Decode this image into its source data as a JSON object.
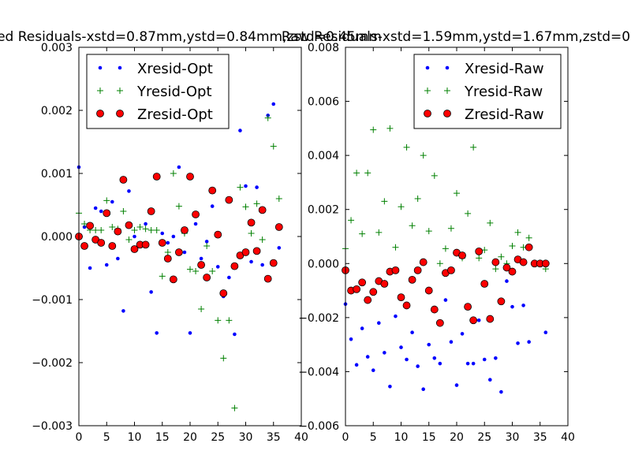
{
  "figure_titles": [
    "ed Residuals-xstd=0.87mm,ystd=0.84mm,zstd=0.45mm",
    "Raw Residuals-xstd=1.59mm,ystd=1.67mm,zstd=0"
  ],
  "colors": {
    "xresid": "#0000ff",
    "yresid": "#008000",
    "zresid_face": "#ff0000",
    "zresid_edge": "#000000",
    "axes": "#000000",
    "background": "#ffffff"
  },
  "chart_data": [
    {
      "type": "scatter",
      "title": "ed Residuals-xstd=0.87mm,ystd=0.84mm,zstd=0.45mm",
      "xlim": [
        0,
        40
      ],
      "ylim": [
        -0.003,
        0.003
      ],
      "xticks": [
        0,
        5,
        10,
        15,
        20,
        25,
        30,
        35,
        40
      ],
      "xtick_labels": [
        "0",
        "5",
        "10",
        "15",
        "20",
        "25",
        "30",
        "35",
        "40"
      ],
      "yticks": [
        -0.003,
        -0.002,
        -0.001,
        0.0,
        0.001,
        0.002,
        0.003
      ],
      "ytick_labels": [
        "−0.003",
        "−0.002",
        "−0.001",
        "0.000",
        "0.001",
        "0.002",
        "0.003"
      ],
      "grid": false,
      "legend_position": "top-left",
      "series": [
        {
          "name": "Xresid-Opt",
          "marker": "dot",
          "color_key": "xresid",
          "x": [
            0,
            1,
            2,
            3,
            4,
            5,
            6,
            7,
            8,
            9,
            10,
            11,
            12,
            13,
            14,
            15,
            16,
            17,
            18,
            19,
            20,
            21,
            22,
            23,
            24,
            25,
            26,
            27,
            28,
            29,
            30,
            31,
            32,
            33,
            34,
            35,
            36
          ],
          "y": [
            0.0011,
            0.00015,
            -0.0005,
            0.00045,
            0.0004,
            -0.00045,
            0.00055,
            -0.00035,
            -0.00118,
            0.00072,
            0.0,
            -0.0001,
            0.0002,
            -0.00088,
            -0.00153,
            5e-05,
            -0.0001,
            0.0,
            0.0011,
            -0.00025,
            -0.00153,
            0.0002,
            -0.00035,
            -8e-05,
            0.00048,
            -0.00048,
            -0.00095,
            -0.00065,
            -0.00155,
            0.00168,
            0.0008,
            -0.0004,
            0.00078,
            -0.00045,
            0.00192,
            0.0021,
            -0.00018
          ]
        },
        {
          "name": "Yresid-Opt",
          "marker": "plus",
          "color_key": "yresid",
          "x": [
            0,
            1,
            2,
            3,
            4,
            5,
            6,
            7,
            8,
            9,
            10,
            11,
            12,
            13,
            14,
            15,
            16,
            17,
            18,
            19,
            20,
            21,
            22,
            23,
            24,
            25,
            26,
            27,
            28,
            29,
            30,
            31,
            32,
            33,
            34,
            35,
            36
          ],
          "y": [
            0.00037,
            0.0002,
            0.0001,
            0.0001,
            0.0001,
            0.00057,
            0.00015,
            0.00012,
            0.0004,
            -5e-05,
            0.0001,
            0.00015,
            0.00012,
            0.0001,
            0.0001,
            -0.00063,
            -0.00025,
            0.001,
            0.00048,
            5e-05,
            -0.00052,
            -0.00055,
            -0.00115,
            -0.00015,
            -0.00055,
            -0.00133,
            -0.00193,
            -0.00133,
            -0.00272,
            0.00078,
            0.00047,
            5e-05,
            0.00052,
            -5e-05,
            0.00188,
            0.00143,
            0.0006
          ]
        },
        {
          "name": "Zresid-Opt",
          "marker": "circle",
          "color_key": "zresid_face",
          "x": [
            0,
            1,
            2,
            3,
            4,
            5,
            6,
            7,
            8,
            9,
            10,
            11,
            12,
            13,
            14,
            15,
            16,
            17,
            18,
            19,
            20,
            21,
            22,
            23,
            24,
            25,
            26,
            27,
            28,
            29,
            30,
            31,
            32,
            33,
            34,
            35,
            36
          ],
          "y": [
            0.0,
            -0.00015,
            0.00017,
            -5e-05,
            -0.0001,
            0.00037,
            -0.00015,
            8e-05,
            0.0009,
            0.00018,
            -0.0002,
            -0.00013,
            -0.00013,
            0.0004,
            0.00095,
            -0.0001,
            -0.00035,
            -0.00068,
            -0.00025,
            0.0001,
            0.00095,
            0.00035,
            -0.00045,
            -0.00065,
            0.00073,
            3e-05,
            -0.0009,
            0.00058,
            -0.00047,
            -0.0003,
            -0.00025,
            0.00022,
            -0.00023,
            0.00042,
            -0.00067,
            -0.00042,
            0.00015
          ]
        }
      ]
    },
    {
      "type": "scatter",
      "title": "Raw Residuals-xstd=1.59mm,ystd=1.67mm,zstd=0",
      "xlim": [
        0,
        40
      ],
      "ylim": [
        -0.006,
        0.008
      ],
      "xticks": [
        0,
        5,
        10,
        15,
        20,
        25,
        30,
        35,
        40
      ],
      "xtick_labels": [
        "0",
        "5",
        "10",
        "15",
        "20",
        "25",
        "30",
        "35",
        "40"
      ],
      "yticks": [
        -0.006,
        -0.004,
        -0.002,
        0.0,
        0.002,
        0.004,
        0.006,
        0.008
      ],
      "ytick_labels": [
        "−0.006",
        "−0.004",
        "−0.002",
        "0.000",
        "0.002",
        "0.004",
        "0.006",
        "0.008"
      ],
      "grid": false,
      "legend_position": "top-right",
      "series": [
        {
          "name": "Xresid-Raw",
          "marker": "dot",
          "color_key": "xresid",
          "x": [
            0,
            1,
            2,
            3,
            4,
            5,
            6,
            7,
            8,
            9,
            10,
            11,
            12,
            13,
            14,
            15,
            16,
            17,
            18,
            19,
            20,
            21,
            22,
            23,
            24,
            25,
            26,
            27,
            28,
            29,
            30,
            31,
            32,
            33,
            34,
            35,
            36
          ],
          "y": [
            -0.0015,
            -0.0028,
            -0.00375,
            -0.0024,
            -0.00345,
            -0.00395,
            -0.0022,
            -0.0033,
            -0.00455,
            -0.00195,
            -0.0031,
            -0.00355,
            -0.00255,
            -0.0038,
            -0.00465,
            -0.003,
            -0.0035,
            -0.0037,
            -0.00135,
            -0.0029,
            -0.0045,
            -0.0026,
            -0.0037,
            -0.0037,
            -0.0021,
            -0.00355,
            -0.0043,
            -0.0035,
            -0.00475,
            -0.00065,
            -0.0016,
            -0.00295,
            -0.00155,
            -0.0029,
            0.0,
            0.0,
            -0.00255
          ]
        },
        {
          "name": "Yresid-Raw",
          "marker": "plus",
          "color_key": "yresid",
          "x": [
            0,
            1,
            2,
            3,
            4,
            5,
            6,
            7,
            8,
            9,
            10,
            11,
            12,
            13,
            14,
            15,
            16,
            17,
            18,
            19,
            20,
            21,
            22,
            23,
            24,
            25,
            26,
            27,
            28,
            29,
            30,
            31,
            32,
            33,
            34,
            35,
            36
          ],
          "y": [
            0.00055,
            0.0016,
            0.00335,
            0.0011,
            0.00335,
            0.00495,
            0.00115,
            0.0023,
            0.005,
            0.0006,
            0.0021,
            0.0043,
            0.0014,
            0.0024,
            0.004,
            0.0012,
            0.00325,
            0.0,
            0.00055,
            0.0013,
            0.0026,
            0.0002,
            0.00185,
            0.0043,
            0.0002,
            0.0005,
            0.0015,
            -0.0002,
            0.00025,
            0.0,
            0.00065,
            0.00115,
            0.0006,
            0.00095,
            0.0,
            0.0,
            -0.0002
          ]
        },
        {
          "name": "Zresid-Raw",
          "marker": "circle",
          "color_key": "zresid_face",
          "x": [
            0,
            1,
            2,
            3,
            4,
            5,
            6,
            7,
            8,
            9,
            10,
            11,
            12,
            13,
            14,
            15,
            16,
            17,
            18,
            19,
            20,
            21,
            22,
            23,
            24,
            25,
            26,
            27,
            28,
            29,
            30,
            31,
            32,
            33,
            34,
            35,
            36
          ],
          "y": [
            -0.00025,
            -0.001,
            -0.00095,
            -0.0007,
            -0.00135,
            -0.00105,
            -0.00065,
            -0.00075,
            -0.0003,
            -0.00025,
            -0.00125,
            -0.00155,
            -0.0006,
            -0.00025,
            5e-05,
            -0.001,
            -0.0017,
            -0.0022,
            -0.00035,
            -0.00025,
            0.0004,
            0.0003,
            -0.0016,
            -0.0021,
            0.00045,
            -0.00075,
            -0.00205,
            5e-05,
            -0.0014,
            -0.00015,
            -0.0003,
            0.00015,
            5e-05,
            0.0006,
            0.0,
            0.0,
            0.0
          ]
        }
      ]
    }
  ]
}
